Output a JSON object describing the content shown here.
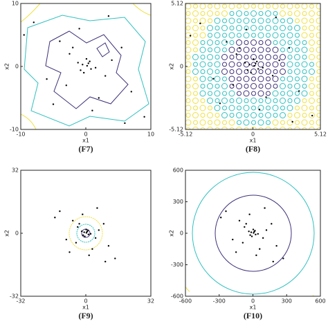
{
  "chart_data": [
    {
      "type": "scatter",
      "caption": "(F7)",
      "xlabel": "x1",
      "ylabel": "x2",
      "color": "#000000",
      "xlim": [
        -10,
        10
      ],
      "ylim": [
        -10,
        10
      ],
      "xticks": [
        -10,
        0,
        10
      ],
      "yticks": [
        -10,
        0,
        10
      ],
      "x": [
        0.2,
        -0.5,
        0.8,
        -1.2,
        1.5,
        0.1,
        -0.3,
        0.6,
        -2.5,
        3,
        -4,
        5.5,
        -6,
        2,
        -1,
        7,
        -8,
        1,
        -3,
        4,
        0.4,
        -0.8,
        9,
        -9.5,
        3.5,
        -5,
        6,
        -2
      ],
      "y": [
        0.1,
        0.3,
        -0.4,
        0.6,
        -0.2,
        1.2,
        -1,
        0.8,
        2,
        -1.5,
        4,
        3,
        -2,
        -5,
        6,
        -4,
        7,
        -7,
        -3,
        1,
        0.5,
        -0.6,
        -8,
        5,
        8,
        -6,
        -9,
        3
      ]
    },
    {
      "type": "scatter",
      "caption": "(F8)",
      "xlabel": "x1",
      "ylabel": "x2",
      "color": "#000000",
      "xlim": [
        -5.12,
        5.12
      ],
      "ylim": [
        -5.12,
        5.12
      ],
      "xticks": [
        -5.12,
        0,
        5.12
      ],
      "yticks": [
        -5.12,
        0,
        5.12
      ],
      "x": [
        0.1,
        -0.25,
        0.4,
        -0.6,
        0.75,
        0.05,
        -0.15,
        0.3,
        -1.25,
        1.5,
        -2,
        2.75,
        -3,
        1,
        -0.5,
        3.5,
        -4,
        0.5,
        -1.5,
        2,
        0.2,
        -0.4,
        4.5,
        -4.75,
        1.75,
        -2.5,
        3,
        -1
      ],
      "y": [
        0.05,
        0.15,
        -0.2,
        0.3,
        -0.1,
        0.6,
        -0.5,
        0.4,
        1,
        -0.75,
        2,
        1.5,
        -1,
        -2.5,
        3,
        -2,
        3.5,
        -3.5,
        -1.5,
        0.5,
        0.25,
        -0.3,
        -4,
        2.5,
        4,
        -3,
        -4.5,
        1.5
      ]
    },
    {
      "type": "scatter",
      "caption": "(F9)",
      "xlabel": "x1",
      "ylabel": "x2",
      "color": "#000000",
      "xlim": [
        -32,
        32
      ],
      "ylim": [
        -32,
        32
      ],
      "xticks": [
        -32,
        0,
        32
      ],
      "yticks": [
        -32,
        0,
        32
      ],
      "x": [
        0.3,
        -0.8,
        1.3,
        -2,
        2.4,
        0.2,
        -0.5,
        1,
        -4,
        4.8,
        -6.4,
        8.8,
        -9.6,
        3.2,
        -1.6,
        11.2,
        -12.8,
        1.6,
        -4.8,
        6.4,
        0.6,
        -1.3,
        14.4,
        -15.2,
        5.6,
        -8,
        9.6,
        -3.2
      ],
      "y": [
        0.2,
        0.5,
        -0.6,
        1,
        -0.3,
        1.9,
        -1.6,
        1.3,
        3.2,
        -2.4,
        6.4,
        4.8,
        -3.2,
        -8,
        9.6,
        -6.4,
        11.2,
        -11.2,
        -4.8,
        1.6,
        0.8,
        -1,
        -12.8,
        8,
        12.8,
        -9.6,
        -14.4,
        4.8
      ]
    },
    {
      "type": "scatter",
      "caption": "(F10)",
      "xlabel": "x1",
      "ylabel": "x2",
      "color": "#000000",
      "xlim": [
        -600,
        600
      ],
      "ylim": [
        -600,
        600
      ],
      "xticks": [
        -600,
        -300,
        0,
        300,
        600
      ],
      "yticks": [
        -600,
        -300,
        0,
        300,
        600
      ],
      "x": [
        6,
        -15,
        24,
        -36,
        45,
        3,
        -9,
        18,
        -75,
        90,
        -120,
        165,
        -180,
        60,
        -30,
        210,
        -240,
        30,
        -90,
        120,
        12,
        -24,
        270,
        -285,
        105,
        -150,
        180,
        -60
      ],
      "y": [
        3,
        9,
        -12,
        18,
        -6,
        36,
        -30,
        24,
        60,
        -45,
        120,
        90,
        -60,
        -150,
        180,
        -120,
        210,
        -210,
        -90,
        30,
        15,
        -18,
        -240,
        150,
        240,
        -180,
        -270,
        90
      ]
    }
  ]
}
